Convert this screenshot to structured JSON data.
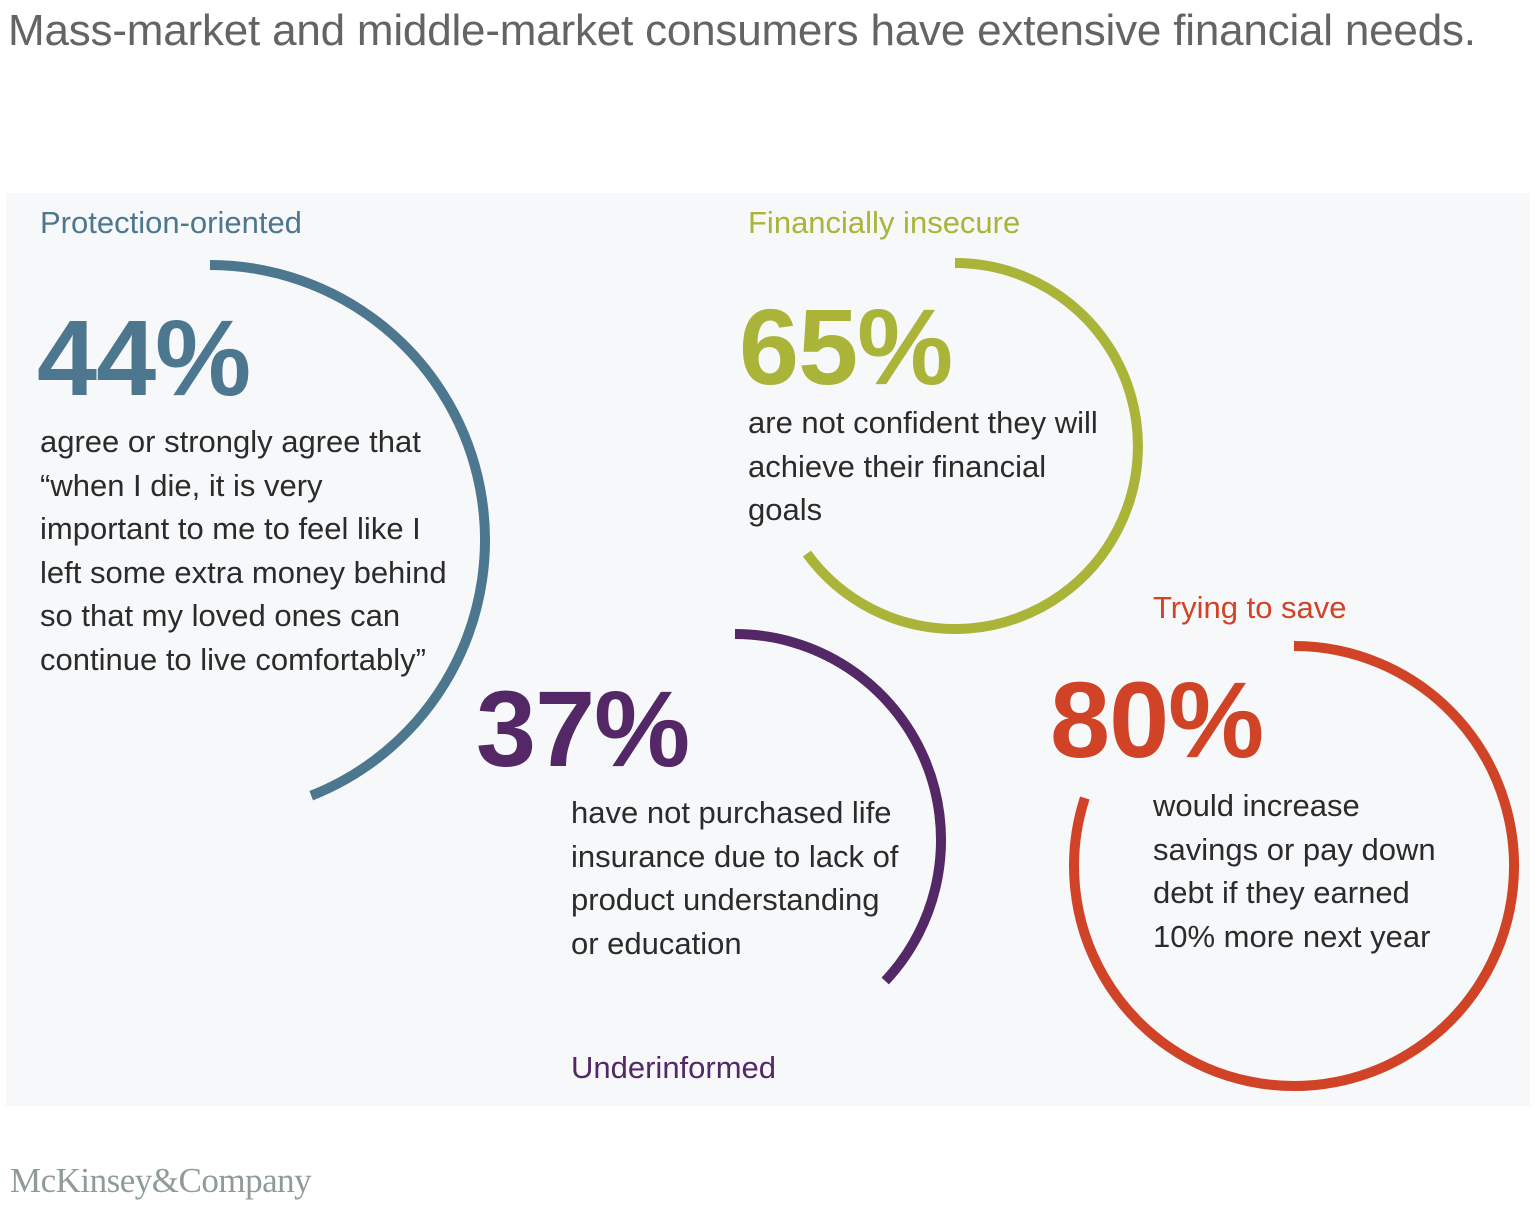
{
  "title": "Mass-market and middle-market consumers have extensive financial needs.",
  "stats": [
    {
      "id": "protection",
      "label": "Protection-oriented",
      "value": "44%",
      "fraction": 0.44,
      "description": "agree or strongly agree that “when I die, it is very important to me to feel like I left some extra money behind so that my loved ones can continue to live comfortably”",
      "color": "#4d778f"
    },
    {
      "id": "insecure",
      "label": "Financially insecure",
      "value": "65%",
      "fraction": 0.65,
      "description": "are not confident they will achieve their financial goals",
      "color": "#a9b438"
    },
    {
      "id": "underinformed",
      "label": "Underinformed",
      "value": "37%",
      "fraction": 0.37,
      "description": "have not purchased life insurance due to lack of product understanding or education",
      "color": "#542766"
    },
    {
      "id": "saving",
      "label": "Trying to save",
      "value": "80%",
      "fraction": 0.8,
      "description": "would increase savings or pay down debt if they earned 10% more next year",
      "color": "#d04327"
    }
  ],
  "footer": {
    "logo": "McKinsey&Company"
  }
}
